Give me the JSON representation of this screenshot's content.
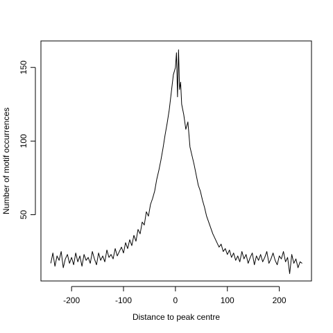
{
  "chart_data": {
    "type": "line",
    "title": "",
    "xlabel": "Distance to peak centre",
    "ylabel": "Number of motif occurrences",
    "xlim": [
      -259,
      262
    ],
    "ylim": [
      5,
      168
    ],
    "xticks": [
      -200,
      -100,
      0,
      100,
      200
    ],
    "yticks": [
      50,
      100,
      150
    ],
    "xtick_labels": [
      "-200",
      "-100",
      "0",
      "100",
      "200"
    ],
    "ytick_labels": [
      "50",
      "100",
      "150"
    ],
    "grid": false,
    "legend": "none",
    "series": [
      {
        "color": "#000000",
        "x": [
          -240,
          -236,
          -232,
          -228,
          -224,
          -220,
          -216,
          -212,
          -208,
          -204,
          -200,
          -196,
          -192,
          -188,
          -184,
          -180,
          -176,
          -172,
          -168,
          -164,
          -160,
          -156,
          -152,
          -148,
          -144,
          -140,
          -136,
          -132,
          -128,
          -124,
          -120,
          -116,
          -112,
          -108,
          -104,
          -100,
          -96,
          -92,
          -88,
          -84,
          -80,
          -76,
          -72,
          -68,
          -64,
          -60,
          -56,
          -52,
          -48,
          -44,
          -40,
          -36,
          -32,
          -28,
          -24,
          -20,
          -16,
          -12,
          -8,
          -4,
          0,
          2,
          4,
          6,
          8,
          10,
          12,
          16,
          20,
          24,
          28,
          32,
          36,
          40,
          44,
          48,
          52,
          56,
          60,
          64,
          68,
          72,
          76,
          80,
          84,
          88,
          92,
          96,
          100,
          104,
          108,
          112,
          116,
          120,
          124,
          128,
          132,
          136,
          140,
          144,
          148,
          152,
          156,
          160,
          164,
          168,
          172,
          176,
          180,
          184,
          188,
          192,
          196,
          200,
          204,
          208,
          212,
          216,
          220,
          224,
          228,
          232,
          236,
          240,
          244
        ],
        "y": [
          17,
          24,
          15,
          22,
          19,
          25,
          14,
          20,
          23,
          17,
          21,
          16,
          24,
          18,
          22,
          15,
          23,
          19,
          21,
          17,
          25,
          20,
          16,
          24,
          19,
          22,
          18,
          26,
          21,
          23,
          20,
          27,
          22,
          25,
          28,
          24,
          31,
          27,
          33,
          29,
          36,
          32,
          40,
          37,
          45,
          43,
          52,
          49,
          57,
          61,
          66,
          74,
          80,
          87,
          95,
          104,
          112,
          121,
          133,
          145,
          150,
          160,
          130,
          162,
          135,
          140,
          125,
          118,
          108,
          113,
          96,
          90,
          84,
          77,
          70,
          66,
          60,
          55,
          49,
          45,
          41,
          37,
          34,
          31,
          28,
          30,
          25,
          27,
          23,
          26,
          21,
          24,
          19,
          22,
          18,
          25,
          20,
          23,
          17,
          21,
          24,
          16,
          22,
          19,
          23,
          18,
          21,
          25,
          17,
          20,
          24,
          19,
          16,
          22,
          20,
          25,
          18,
          21,
          10,
          23,
          17,
          20,
          14,
          18,
          17
        ]
      }
    ]
  }
}
